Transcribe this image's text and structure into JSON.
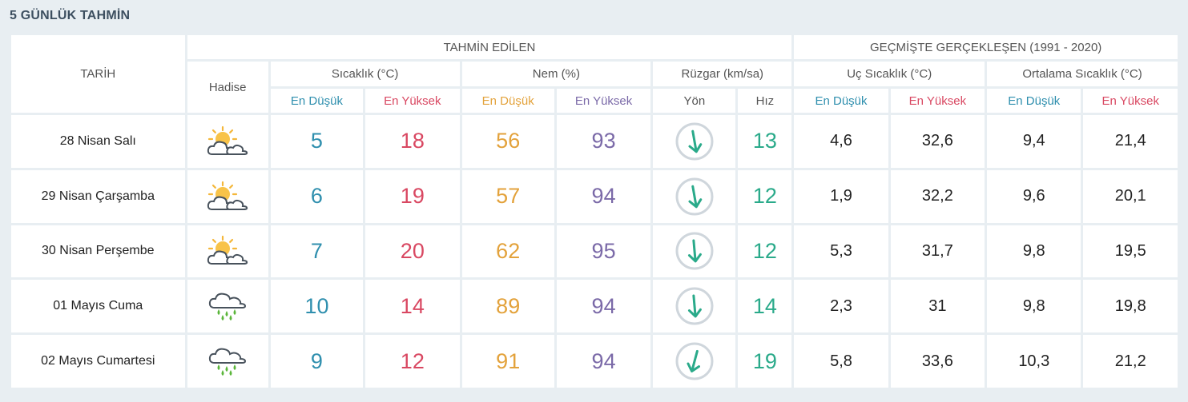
{
  "title": "5 GÜNLÜK TAHMİN",
  "headers": {
    "tarih": "TARİH",
    "tahmin": "TAHMİN EDİLEN",
    "gecmis": "GEÇMİŞTE GERÇEKLEŞEN (1991 - 2020)",
    "hadise": "Hadise",
    "sicaklik": "Sıcaklık (°C)",
    "nem": "Nem (%)",
    "ruzgar": "Rüzgar (km/sa)",
    "uc": "Uç Sıcaklık (°C)",
    "ortalama": "Ortalama Sıcaklık (°C)",
    "en_dusuk": "En Düşük",
    "en_yuksek": "En Yüksek",
    "yon": "Yön",
    "hiz": "Hız"
  },
  "colors": {
    "low": "#2f8fae",
    "high": "#d94862",
    "humidity_low": "#e3a23b",
    "humidity_high": "#7b6aa8",
    "wind": "#2aaa8a"
  },
  "rows": [
    {
      "date": "28 Nisan Salı",
      "icon": "partly-cloudy-icon",
      "t_min": "5",
      "t_max": "18",
      "h_min": "56",
      "h_max": "93",
      "wind_speed": "13",
      "uc_min": "4,6",
      "uc_max": "32,6",
      "ort_min": "9,4",
      "ort_max": "21,4"
    },
    {
      "date": "29 Nisan Çarşamba",
      "icon": "partly-cloudy-icon",
      "t_min": "6",
      "t_max": "19",
      "h_min": "57",
      "h_max": "94",
      "wind_speed": "12",
      "uc_min": "1,9",
      "uc_max": "32,2",
      "ort_min": "9,6",
      "ort_max": "20,1"
    },
    {
      "date": "30 Nisan Perşembe",
      "icon": "partly-cloudy-icon",
      "t_min": "7",
      "t_max": "20",
      "h_min": "62",
      "h_max": "95",
      "wind_speed": "12",
      "uc_min": "5,3",
      "uc_max": "31,7",
      "ort_min": "9,8",
      "ort_max": "19,5"
    },
    {
      "date": "01 Mayıs Cuma",
      "icon": "rain-cloud-icon",
      "t_min": "10",
      "t_max": "14",
      "h_min": "89",
      "h_max": "94",
      "wind_speed": "14",
      "uc_min": "2,3",
      "uc_max": "31",
      "ort_min": "9,8",
      "ort_max": "19,8"
    },
    {
      "date": "02 Mayıs Cumartesi",
      "icon": "rain-cloud-icon",
      "t_min": "9",
      "t_max": "12",
      "h_min": "91",
      "h_max": "94",
      "wind_speed": "19",
      "uc_min": "5,8",
      "uc_max": "33,6",
      "ort_min": "10,3",
      "ort_max": "21,2"
    }
  ]
}
